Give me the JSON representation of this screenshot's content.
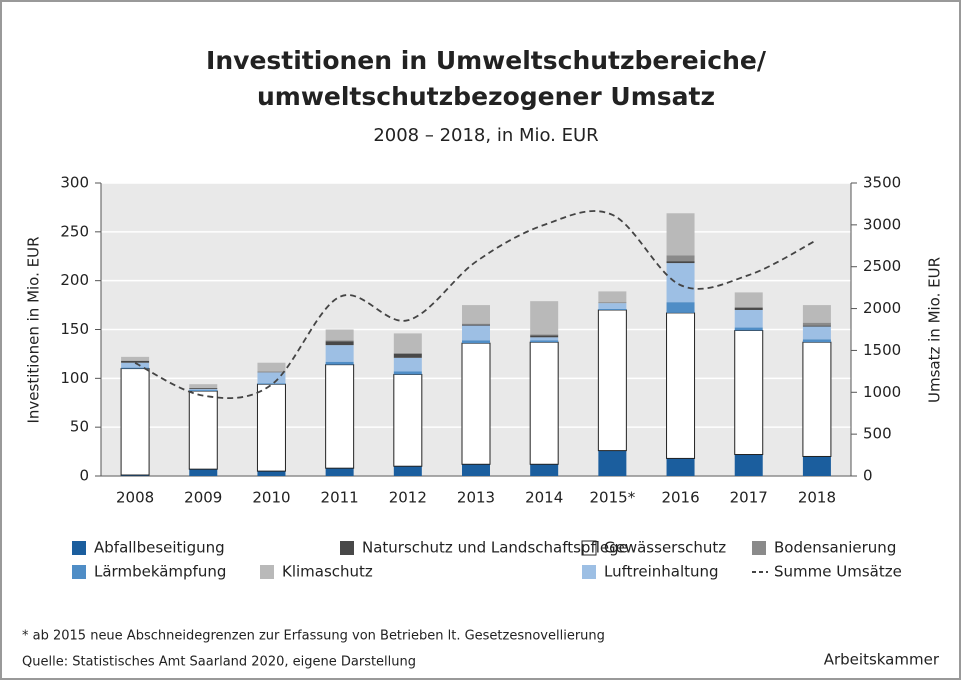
{
  "chart_data": {
    "type": "bar",
    "title": "Investitionen in Umweltschutzbereiche/",
    "title_line2": "umweltschutzbezogener Umsatz",
    "subtitle": "2008 – 2018, in Mio. EUR",
    "ylabel": "Investitionen in Mio. EUR",
    "y2label": "Umsatz in Mio. EUR",
    "stacked": true,
    "grid": true,
    "categories": [
      "2008",
      "2009",
      "2010",
      "2011",
      "2012",
      "2013",
      "2014",
      "2015*",
      "2016",
      "2017",
      "2018"
    ],
    "ylim": [
      0,
      300
    ],
    "yticks": [
      0,
      50,
      100,
      150,
      200,
      250,
      300
    ],
    "y2lim": [
      0,
      3500
    ],
    "y2ticks": [
      0,
      500,
      1000,
      1500,
      2000,
      2500,
      3000,
      3500
    ],
    "series": [
      {
        "name": "Abfallbeseitigung",
        "color": "#1b5e9e",
        "values": [
          1,
          7,
          5,
          8,
          10,
          12,
          12,
          26,
          18,
          22,
          20
        ]
      },
      {
        "name": "Gewässerschutz",
        "color": "#ffffff",
        "values": [
          109,
          80,
          89,
          106,
          94,
          124,
          125,
          144,
          149,
          127,
          117
        ]
      },
      {
        "name": "Lärmbekämpfung",
        "color": "#4f8dc6",
        "values": [
          1,
          1,
          1,
          3,
          3,
          3,
          2,
          1,
          11,
          3,
          3
        ]
      },
      {
        "name": "Luftreinhaltung",
        "color": "#9dbfe4",
        "values": [
          5,
          1,
          11,
          17,
          14,
          15,
          3,
          6,
          40,
          18,
          13
        ]
      },
      {
        "name": "Naturschutz und Landschaftspflege",
        "color": "#484848",
        "values": [
          2,
          1,
          0,
          4,
          4,
          1,
          2,
          0,
          2,
          2,
          1
        ]
      },
      {
        "name": "Bodensanierung",
        "color": "#8a8a8a",
        "values": [
          0,
          0,
          1,
          1,
          1,
          1,
          1,
          1,
          6,
          1,
          3
        ]
      },
      {
        "name": "Klimaschutz",
        "color": "#b9b9b9",
        "values": [
          4,
          4,
          9,
          11,
          20,
          19,
          34,
          11,
          43,
          15,
          18
        ]
      },
      {
        "name": "Summe Umsätze",
        "color": "#444444",
        "type": "line",
        "axis": "y2",
        "dashed": true,
        "values": [
          1350,
          960,
          1090,
          2140,
          1860,
          2560,
          3000,
          3120,
          2280,
          2400,
          2820
        ]
      }
    ],
    "footnote": "* ab 2015 neue Abschneidegrenzen zur Erfassung von Betrieben lt. Gesetzesnovellierung",
    "source": "Quelle: Statistisches Amt Saarland 2020, eigene Darstellung",
    "credit": "Arbeitskammer"
  }
}
